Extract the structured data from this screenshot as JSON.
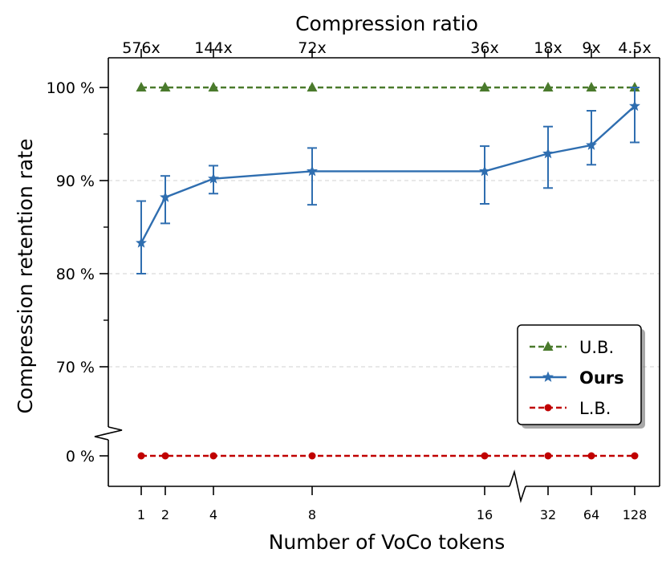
{
  "chart_data": {
    "type": "line",
    "title": "",
    "top_axis_label": "Compression ratio",
    "xlabel": "Number of VoCo tokens",
    "ylabel": "Compression retention rate",
    "x_ticks": [
      "1",
      "2",
      "4",
      "8",
      "16",
      "32",
      "64",
      "128"
    ],
    "top_ticks": [
      "576x",
      "144x",
      "72x",
      "36x",
      "18x",
      "9x",
      "4.5x"
    ],
    "top_tick_positions": [
      1,
      4,
      8,
      16,
      32,
      64,
      128
    ],
    "y_ticks": [
      "100 %",
      "90 %",
      "80 %",
      "70 %",
      "0 %"
    ],
    "y_tick_values": [
      100,
      90,
      80,
      70,
      0
    ],
    "y_axis_break": "between 70 % and 0 %",
    "x_axis_break": "between 16 and 32",
    "grid": "horizontal dashed",
    "legend_position": "bottom-right",
    "x": [
      1,
      2,
      4,
      8,
      16,
      32,
      64,
      128
    ],
    "series": [
      {
        "name": "U.B.",
        "color": "#4a7a2c",
        "marker": "triangle",
        "line_style": "dashed",
        "bold": false,
        "values": [
          100,
          100,
          100,
          100,
          100,
          100,
          100,
          100
        ]
      },
      {
        "name": "Ours",
        "color": "#2f6eb0",
        "marker": "star",
        "line_style": "solid",
        "bold": true,
        "values": [
          83.3,
          88.2,
          90.2,
          91.0,
          91.0,
          92.9,
          93.8,
          98.0
        ],
        "error_low": [
          80.0,
          85.4,
          88.6,
          87.4,
          87.5,
          89.2,
          91.7,
          94.1
        ],
        "error_high": [
          87.8,
          90.5,
          91.6,
          93.5,
          93.7,
          95.8,
          97.5,
          100.0
        ]
      },
      {
        "name": "L.B.",
        "color": "#c00000",
        "marker": "circle",
        "line_style": "dashed",
        "bold": false,
        "values": [
          0,
          0,
          0,
          0,
          0,
          0,
          0,
          0
        ]
      }
    ]
  }
}
